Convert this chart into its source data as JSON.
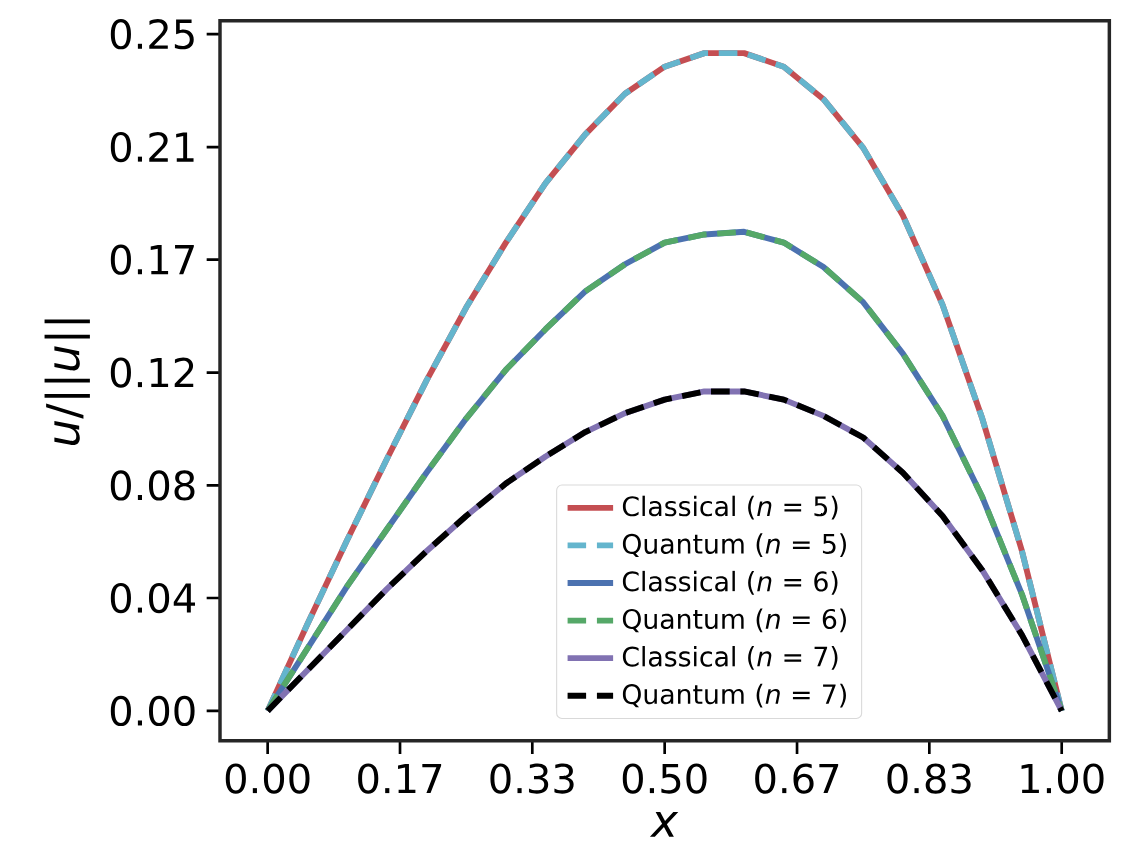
{
  "chart_data": {
    "type": "line",
    "xlabel": "*x*",
    "ylabel": "*u*/||*u*||",
    "x": [
      0,
      0.05,
      0.1,
      0.15,
      0.2,
      0.25,
      0.3,
      0.35,
      0.4,
      0.45,
      0.5,
      0.55,
      0.6,
      0.65,
      0.7,
      0.75,
      0.8,
      0.85,
      0.9,
      0.95,
      1
    ],
    "series": [
      {
        "name": "Classical (*n* = 5)",
        "color": "#c44e52",
        "line_style": "solid",
        "values": [
          0,
          0.032,
          0.063,
          0.093,
          0.122,
          0.149,
          0.173,
          0.195,
          0.213,
          0.228,
          0.238,
          0.243,
          0.243,
          0.238,
          0.226,
          0.208,
          0.183,
          0.15,
          0.108,
          0.059,
          0
        ]
      },
      {
        "name": "Quantum (*n* = 5)",
        "color": "#64b5cd",
        "line_style": "dashed",
        "values": [
          0,
          0.032,
          0.063,
          0.093,
          0.122,
          0.149,
          0.173,
          0.195,
          0.213,
          0.228,
          0.238,
          0.243,
          0.243,
          0.238,
          0.226,
          0.208,
          0.183,
          0.15,
          0.108,
          0.059,
          0
        ]
      },
      {
        "name": "Classical (*n* = 6)",
        "color": "#4c72b0",
        "line_style": "solid",
        "values": [
          0,
          0.023,
          0.046,
          0.067,
          0.088,
          0.108,
          0.126,
          0.141,
          0.155,
          0.165,
          0.173,
          0.176,
          0.177,
          0.173,
          0.164,
          0.151,
          0.132,
          0.109,
          0.079,
          0.043,
          0
        ]
      },
      {
        "name": "Quantum (*n* = 6)",
        "color": "#55a868",
        "line_style": "dashed",
        "values": [
          0,
          0.023,
          0.046,
          0.067,
          0.088,
          0.108,
          0.126,
          0.141,
          0.155,
          0.165,
          0.173,
          0.176,
          0.177,
          0.173,
          0.164,
          0.151,
          0.132,
          0.109,
          0.079,
          0.043,
          0
        ]
      },
      {
        "name": "Classical (*n* = 7)",
        "color": "#8172b2",
        "line_style": "solid",
        "values": [
          0,
          0.015,
          0.03,
          0.045,
          0.059,
          0.072,
          0.084,
          0.094,
          0.103,
          0.11,
          0.115,
          0.118,
          0.118,
          0.115,
          0.109,
          0.101,
          0.088,
          0.072,
          0.052,
          0.028,
          0
        ]
      },
      {
        "name": "Quantum (*n* = 7)",
        "color": "#000000",
        "line_style": "dashed",
        "values": [
          0,
          0.015,
          0.03,
          0.045,
          0.059,
          0.072,
          0.084,
          0.094,
          0.103,
          0.11,
          0.115,
          0.118,
          0.118,
          0.115,
          0.109,
          0.101,
          0.088,
          0.072,
          0.052,
          0.028,
          0
        ]
      }
    ],
    "xlim": [
      -0.06,
      1.06
    ],
    "ylim": [
      -0.011,
      0.255
    ],
    "xticks": [
      {
        "value": 0,
        "label": "0.00"
      },
      {
        "value": 0.1667,
        "label": "0.17"
      },
      {
        "value": 0.3333,
        "label": "0.33"
      },
      {
        "value": 0.5,
        "label": "0.50"
      },
      {
        "value": 0.6667,
        "label": "0.67"
      },
      {
        "value": 0.8333,
        "label": "0.83"
      },
      {
        "value": 1,
        "label": "1.00"
      }
    ],
    "yticks": [
      {
        "value": 0,
        "label": "0.00"
      },
      {
        "value": 0.0417,
        "label": "0.04"
      },
      {
        "value": 0.0833,
        "label": "0.08"
      },
      {
        "value": 0.125,
        "label": "0.12"
      },
      {
        "value": 0.1667,
        "label": "0.17"
      },
      {
        "value": 0.2083,
        "label": "0.21"
      },
      {
        "value": 0.25,
        "label": "0.25"
      }
    ],
    "grid": false,
    "legend": "bottom",
    "marker": "none"
  }
}
